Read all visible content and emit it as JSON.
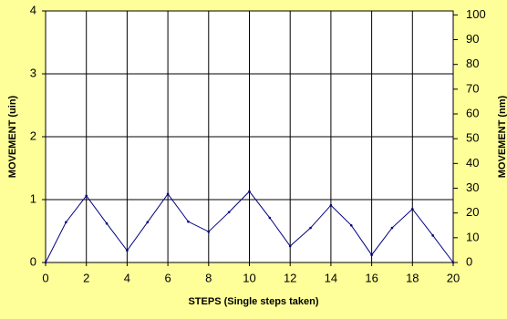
{
  "chart_data": {
    "type": "line",
    "xlabel": "STEPS (Single steps taken)",
    "ylabel": "MOVEMENT (uin)",
    "y2label": "MOVEMENT (nm)",
    "x": [
      0,
      1,
      2,
      3,
      4,
      5,
      6,
      7,
      8,
      9,
      10,
      11,
      12,
      13,
      14,
      15,
      16,
      17,
      18,
      19,
      20
    ],
    "series": [
      {
        "color": "#000080",
        "values": [
          0,
          0.64,
          1.06,
          0.62,
          0.19,
          0.64,
          1.09,
          0.65,
          0.49,
          0.8,
          1.13,
          0.71,
          0.26,
          0.55,
          0.91,
          0.59,
          0.12,
          0.55,
          0.85,
          0.43,
          0
        ]
      }
    ],
    "xlim": [
      0,
      20
    ],
    "xticks": [
      0,
      2,
      4,
      6,
      8,
      10,
      12,
      14,
      16,
      18,
      20
    ],
    "ylim": [
      0,
      4
    ],
    "yticks": [
      0,
      1,
      2,
      3,
      4
    ],
    "y2lim": [
      0,
      101.6
    ],
    "y2ticks": [
      0,
      10,
      20,
      30,
      40,
      50,
      60,
      70,
      80,
      90,
      100
    ],
    "grid": true
  }
}
